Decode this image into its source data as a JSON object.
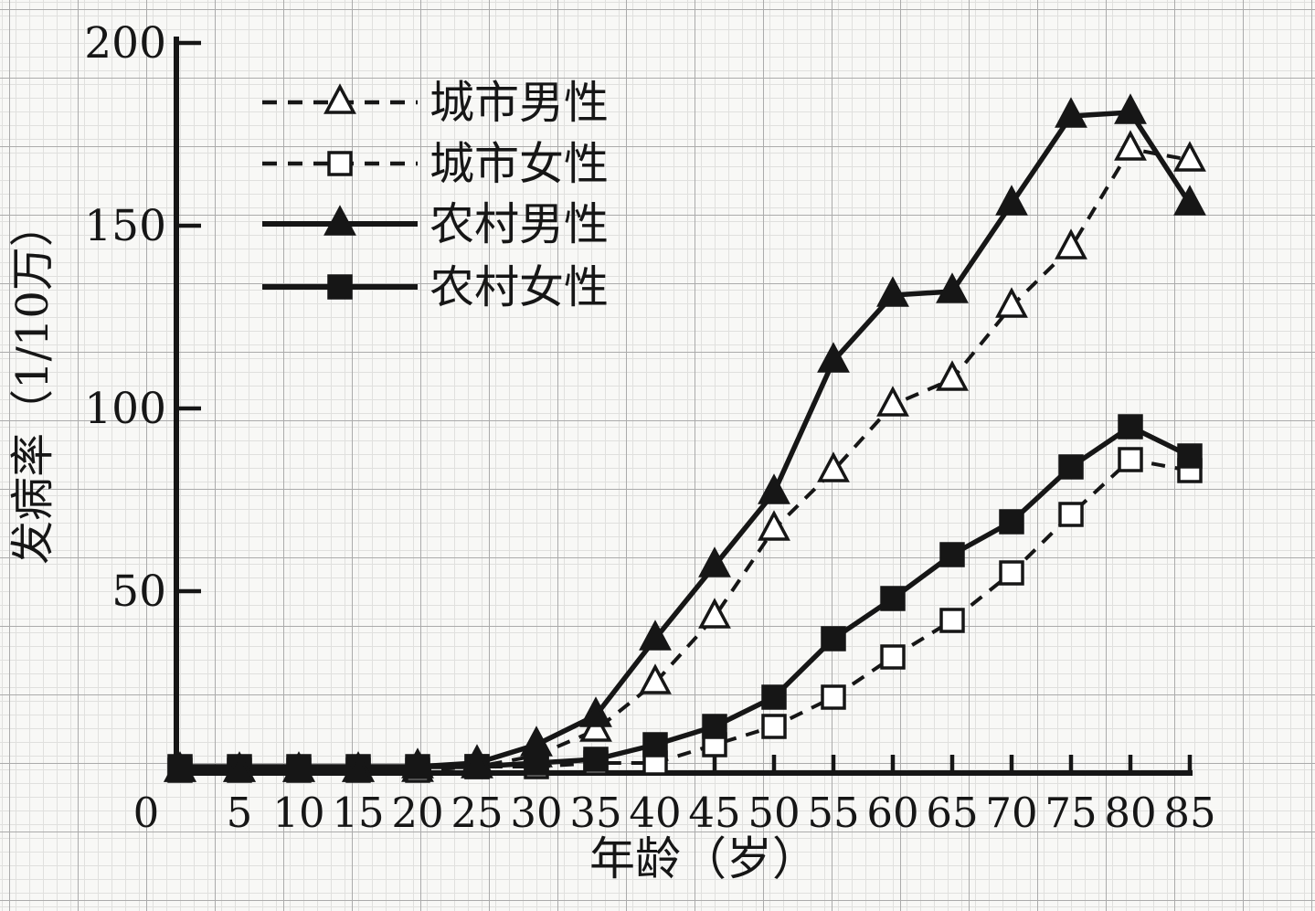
{
  "chart_data": {
    "type": "line",
    "title": "",
    "xlabel": "年龄（岁）",
    "ylabel": "发病率（1/10万）",
    "x": [
      0,
      5,
      10,
      15,
      20,
      25,
      30,
      35,
      40,
      45,
      50,
      55,
      60,
      65,
      70,
      75,
      80,
      85
    ],
    "xlim": [
      0,
      85
    ],
    "ylim": [
      0,
      200
    ],
    "yticks": [
      50,
      100,
      150,
      200
    ],
    "xticks": [
      0,
      5,
      10,
      15,
      20,
      25,
      30,
      35,
      40,
      45,
      50,
      55,
      60,
      65,
      70,
      75,
      80,
      85
    ],
    "grid": "graph-paper background, no internal chart gridlines",
    "legend_position": "top-left inside plot",
    "series": [
      {
        "key": "urban-male",
        "name": "城市男性",
        "line_style": "dashed",
        "marker": "triangle-open",
        "values": [
          1,
          1,
          1,
          1,
          1,
          2,
          5,
          12,
          25,
          43,
          67,
          83,
          101,
          108,
          128,
          144,
          171,
          168
        ]
      },
      {
        "key": "urban-female",
        "name": "城市女性",
        "line_style": "dashed",
        "marker": "square-open",
        "values": [
          1,
          1,
          1,
          1,
          1,
          2,
          2,
          3,
          3,
          8,
          13,
          21,
          32,
          42,
          55,
          71,
          86,
          83
        ]
      },
      {
        "key": "rural-male",
        "name": "农村男性",
        "line_style": "solid",
        "marker": "triangle-filled",
        "values": [
          1,
          1,
          1,
          1,
          2,
          3,
          8,
          16,
          37,
          57,
          77,
          113,
          131,
          132,
          156,
          180,
          181,
          156
        ]
      },
      {
        "key": "rural-female",
        "name": "农村女性",
        "line_style": "solid",
        "marker": "square-filled",
        "values": [
          2,
          2,
          2,
          2,
          2,
          2,
          3,
          4,
          8,
          13,
          21,
          37,
          48,
          60,
          69,
          84,
          95,
          87
        ]
      }
    ]
  },
  "colors": {
    "ink": "#161616",
    "paper": "#f8f8f6",
    "marker_fill_open": "#ffffff",
    "grid_minor": "#e0e0de",
    "grid_major": "#ababab"
  }
}
